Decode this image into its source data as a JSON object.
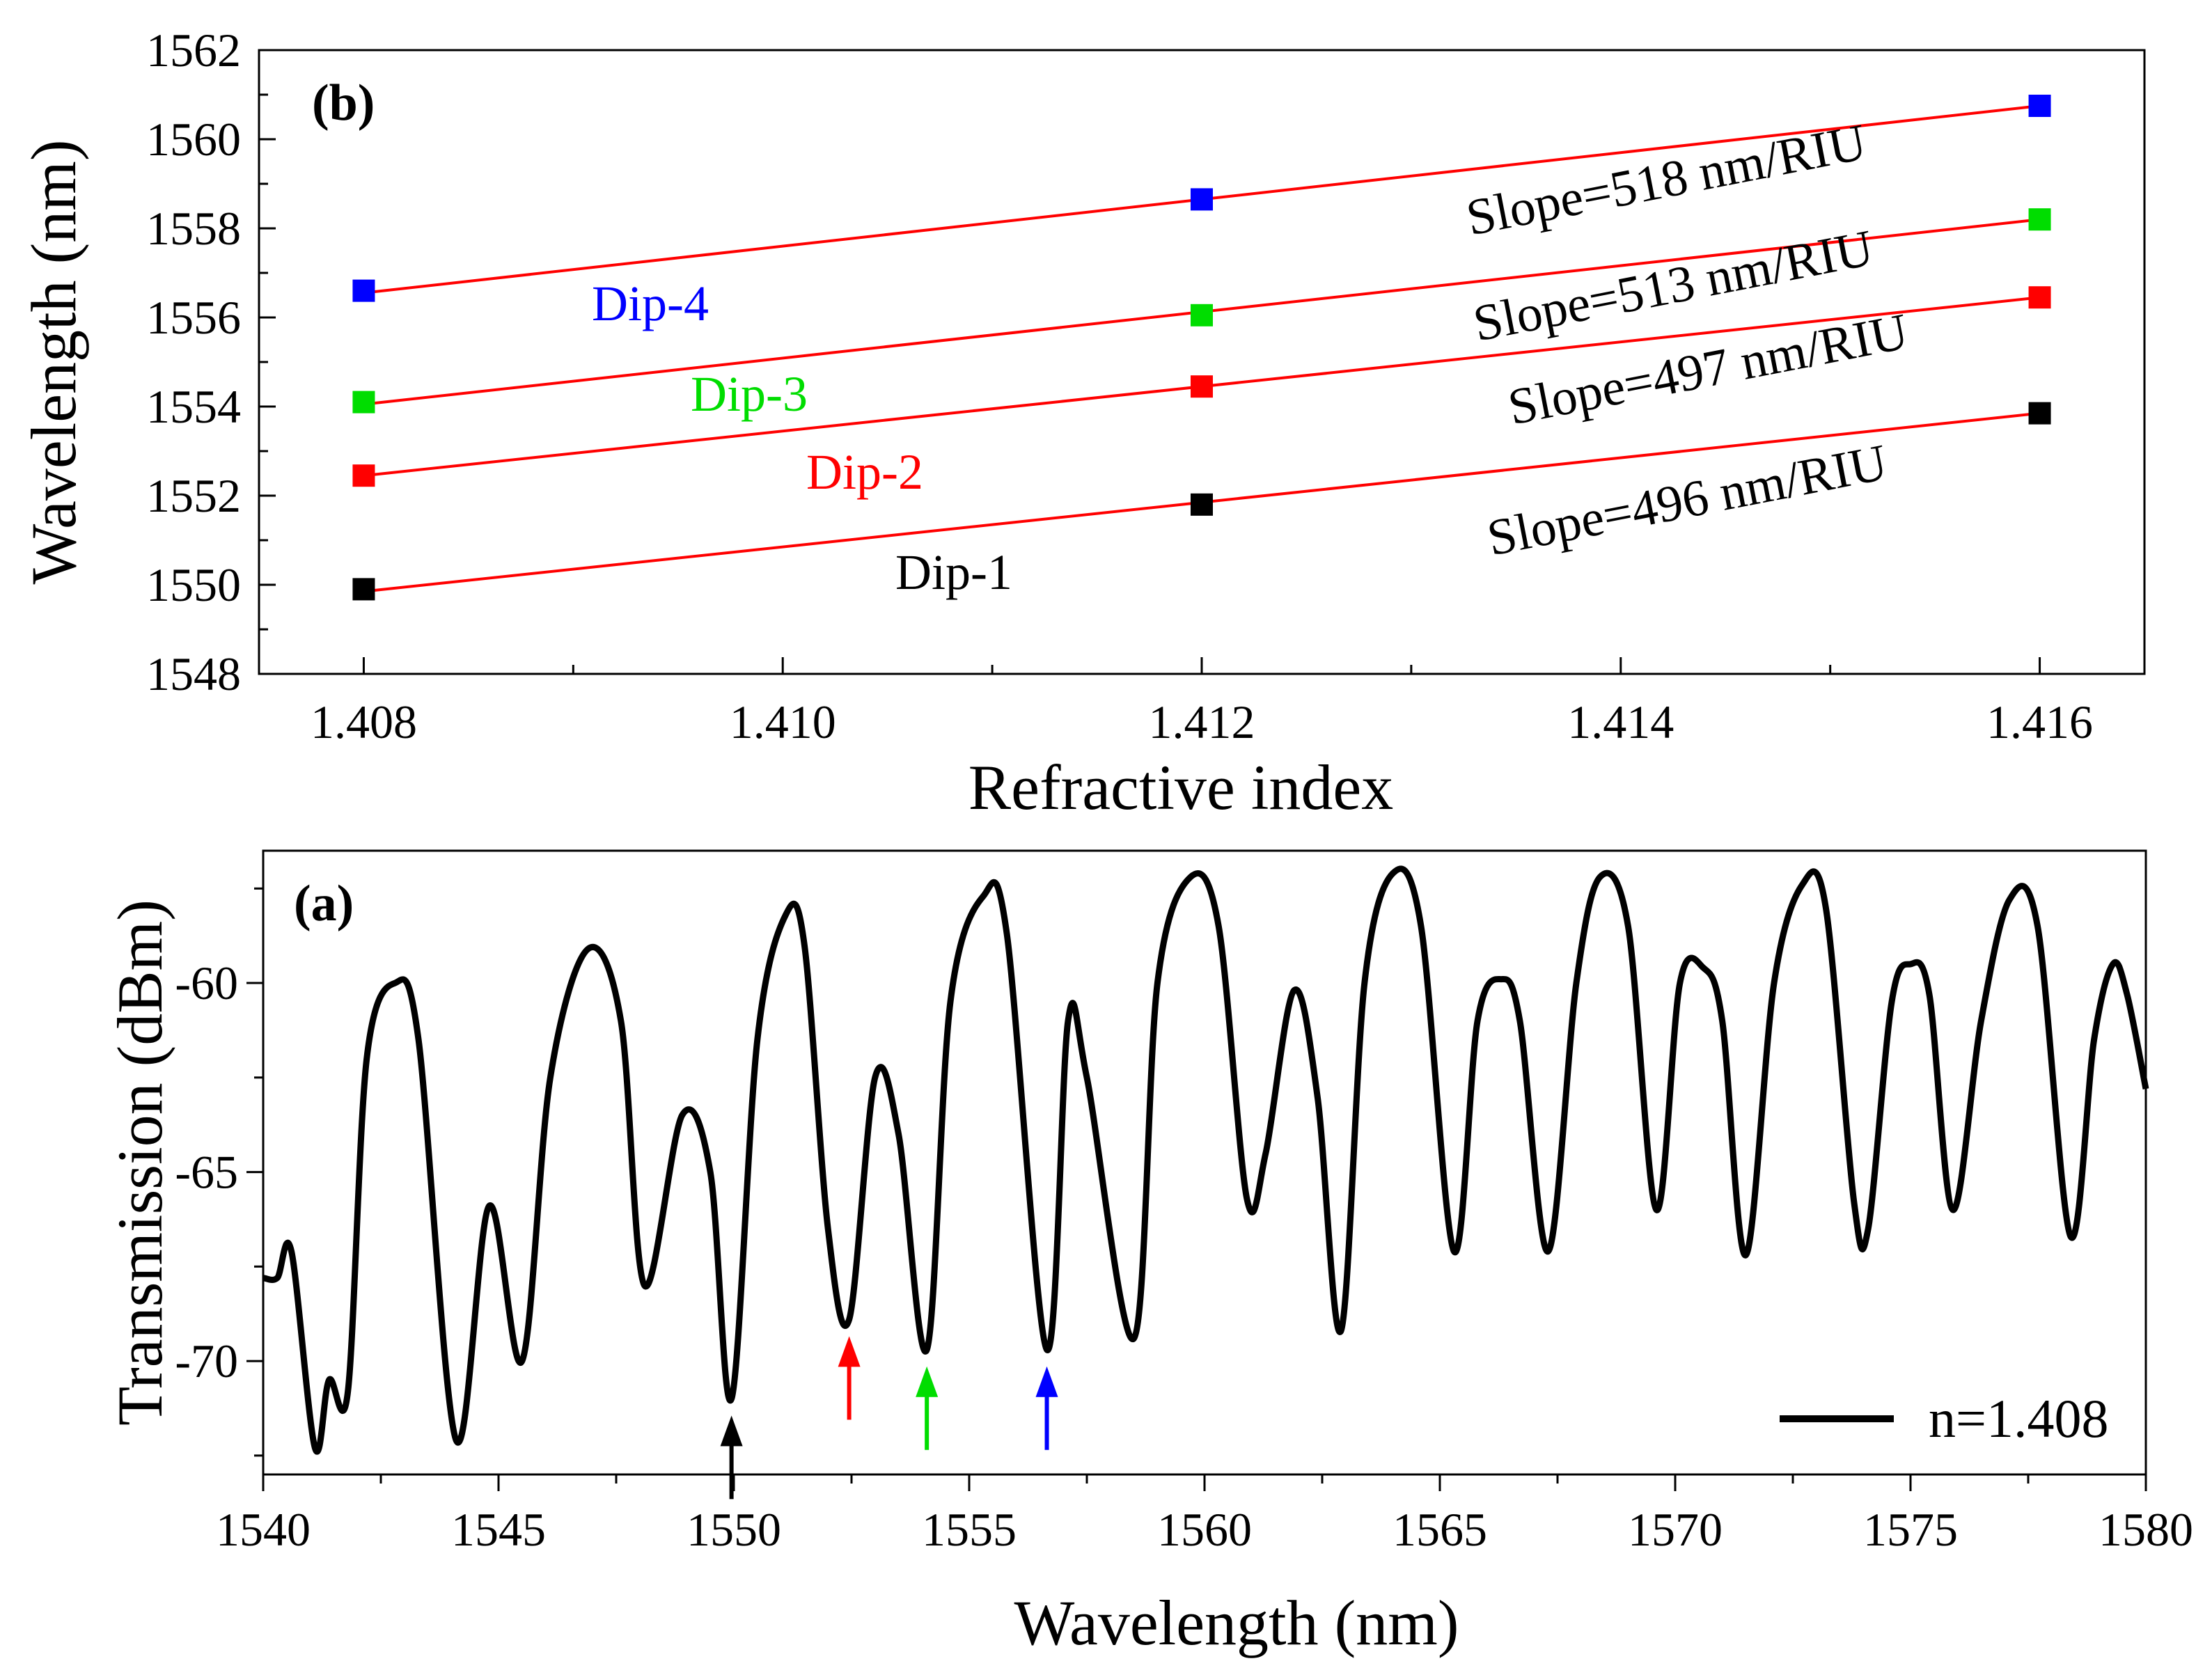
{
  "chart_data": [
    {
      "panel_label": "(b)",
      "type": "scatter",
      "xlabel": "Refractive index",
      "ylabel": "Wavelength (nm)",
      "xlim": [
        1.4075,
        1.4165
      ],
      "ylim": [
        1548,
        1562
      ],
      "x_ticks": [
        1.408,
        1.41,
        1.412,
        1.414,
        1.416
      ],
      "x_tick_labels": [
        "1.408",
        "1.410",
        "1.412",
        "1.414",
        "1.416"
      ],
      "y_ticks": [
        1548,
        1550,
        1552,
        1554,
        1556,
        1558,
        1560,
        1562
      ],
      "y_tick_labels": [
        "1548",
        "1550",
        "1552",
        "1554",
        "1556",
        "1558",
        "1560",
        "1562"
      ],
      "fit_color": "#ff0000",
      "series": [
        {
          "name": "Dip-1",
          "color": "#000000",
          "x": [
            1.408,
            1.412,
            1.416
          ],
          "y": [
            1549.9,
            1551.8,
            1553.85
          ],
          "fit": [
            1549.85,
            1553.85
          ],
          "slope_label": "Slope=496 nm/RIU"
        },
        {
          "name": "Dip-2",
          "color": "#ff0000",
          "x": [
            1.408,
            1.412,
            1.416
          ],
          "y": [
            1552.45,
            1554.45,
            1556.45
          ],
          "fit": [
            1552.45,
            1556.45
          ],
          "slope_label": "Slope=497 nm/RIU"
        },
        {
          "name": "Dip-3",
          "color": "#00dd00",
          "x": [
            1.408,
            1.412,
            1.416
          ],
          "y": [
            1554.1,
            1556.05,
            1558.2
          ],
          "fit": [
            1554.05,
            1558.2
          ],
          "slope_label": "Slope=513 nm/RIU"
        },
        {
          "name": "Dip-4",
          "color": "#0000ff",
          "x": [
            1.408,
            1.412,
            1.416
          ],
          "y": [
            1556.6,
            1558.65,
            1560.75
          ],
          "fit": [
            1556.55,
            1560.75
          ],
          "slope_label": "Slope=518 nm/RIU"
        }
      ]
    },
    {
      "panel_label": "(a)",
      "type": "line",
      "xlabel": "Wavelength (nm)",
      "ylabel": "Transmission (dBm)",
      "xlim": [
        1540,
        1580
      ],
      "ylim": [
        -73,
        -56.5
      ],
      "x_ticks": [
        1540,
        1545,
        1550,
        1555,
        1560,
        1565,
        1570,
        1575,
        1580
      ],
      "x_tick_labels": [
        "1540",
        "1545",
        "1550",
        "1555",
        "1560",
        "1565",
        "1570",
        "1575",
        "1580"
      ],
      "y_ticks": [
        -70,
        -65,
        -60
      ],
      "y_tick_labels": [
        "-70",
        "-65",
        "-60"
      ],
      "legend": "n=1.408",
      "series": [
        {
          "name": "n=1.408",
          "color": "#000000",
          "points": [
            [
              1540.0,
              -67.8
            ],
            [
              1540.3,
              -67.8
            ],
            [
              1540.6,
              -67.1
            ],
            [
              1541.1,
              -72.3
            ],
            [
              1541.4,
              -70.5
            ],
            [
              1541.8,
              -70.8
            ],
            [
              1542.2,
              -62.0
            ],
            [
              1542.8,
              -60.0
            ],
            [
              1543.3,
              -61.5
            ],
            [
              1544.1,
              -72.1
            ],
            [
              1544.8,
              -65.9
            ],
            [
              1545.5,
              -70.0
            ],
            [
              1546.1,
              -62.5
            ],
            [
              1546.9,
              -59.1
            ],
            [
              1547.6,
              -61.0
            ],
            [
              1548.1,
              -68.0
            ],
            [
              1548.9,
              -63.5
            ],
            [
              1549.5,
              -65.0
            ],
            [
              1549.95,
              -71.0
            ],
            [
              1550.5,
              -61.5
            ],
            [
              1551.1,
              -58.2
            ],
            [
              1551.5,
              -59.0
            ],
            [
              1552.0,
              -66.5
            ],
            [
              1552.45,
              -68.9
            ],
            [
              1553.0,
              -62.5
            ],
            [
              1553.5,
              -64.0
            ],
            [
              1554.1,
              -69.7
            ],
            [
              1554.6,
              -60.5
            ],
            [
              1555.3,
              -57.7
            ],
            [
              1555.8,
              -58.7
            ],
            [
              1556.65,
              -69.7
            ],
            [
              1557.1,
              -61.0
            ],
            [
              1557.5,
              -62.5
            ],
            [
              1558.5,
              -69.4
            ],
            [
              1559.0,
              -60.0
            ],
            [
              1559.7,
              -57.2
            ],
            [
              1560.3,
              -58.5
            ],
            [
              1560.9,
              -65.7
            ],
            [
              1561.3,
              -64.5
            ],
            [
              1561.9,
              -60.2
            ],
            [
              1562.4,
              -63.0
            ],
            [
              1562.9,
              -69.2
            ],
            [
              1563.4,
              -60.0
            ],
            [
              1564.0,
              -57.1
            ],
            [
              1564.6,
              -58.5
            ],
            [
              1565.3,
              -67.1
            ],
            [
              1565.8,
              -61.0
            ],
            [
              1566.3,
              -59.9
            ],
            [
              1566.7,
              -61.0
            ],
            [
              1567.3,
              -67.1
            ],
            [
              1567.9,
              -60.0
            ],
            [
              1568.4,
              -57.2
            ],
            [
              1569.0,
              -58.5
            ],
            [
              1569.6,
              -66.0
            ],
            [
              1570.1,
              -60.0
            ],
            [
              1570.6,
              -59.6
            ],
            [
              1571.0,
              -61.0
            ],
            [
              1571.5,
              -67.2
            ],
            [
              1572.1,
              -60.0
            ],
            [
              1572.7,
              -57.4
            ],
            [
              1573.2,
              -58.0
            ],
            [
              1573.8,
              -65.8
            ],
            [
              1574.1,
              -66.5
            ],
            [
              1574.6,
              -60.5
            ],
            [
              1575.0,
              -59.5
            ],
            [
              1575.4,
              -60.3
            ],
            [
              1575.9,
              -66.0
            ],
            [
              1576.5,
              -61.0
            ],
            [
              1577.1,
              -57.8
            ],
            [
              1577.7,
              -58.5
            ],
            [
              1578.4,
              -66.7
            ],
            [
              1578.9,
              -61.5
            ],
            [
              1579.3,
              -59.5
            ],
            [
              1579.6,
              -60.3
            ],
            [
              1580.0,
              -62.8
            ]
          ]
        }
      ],
      "arrows": [
        {
          "x": 1549.95,
          "color": "#000000"
        },
        {
          "x": 1552.45,
          "color": "#ff0000"
        },
        {
          "x": 1554.1,
          "color": "#00dd00"
        },
        {
          "x": 1556.65,
          "color": "#0000ff"
        }
      ]
    }
  ]
}
